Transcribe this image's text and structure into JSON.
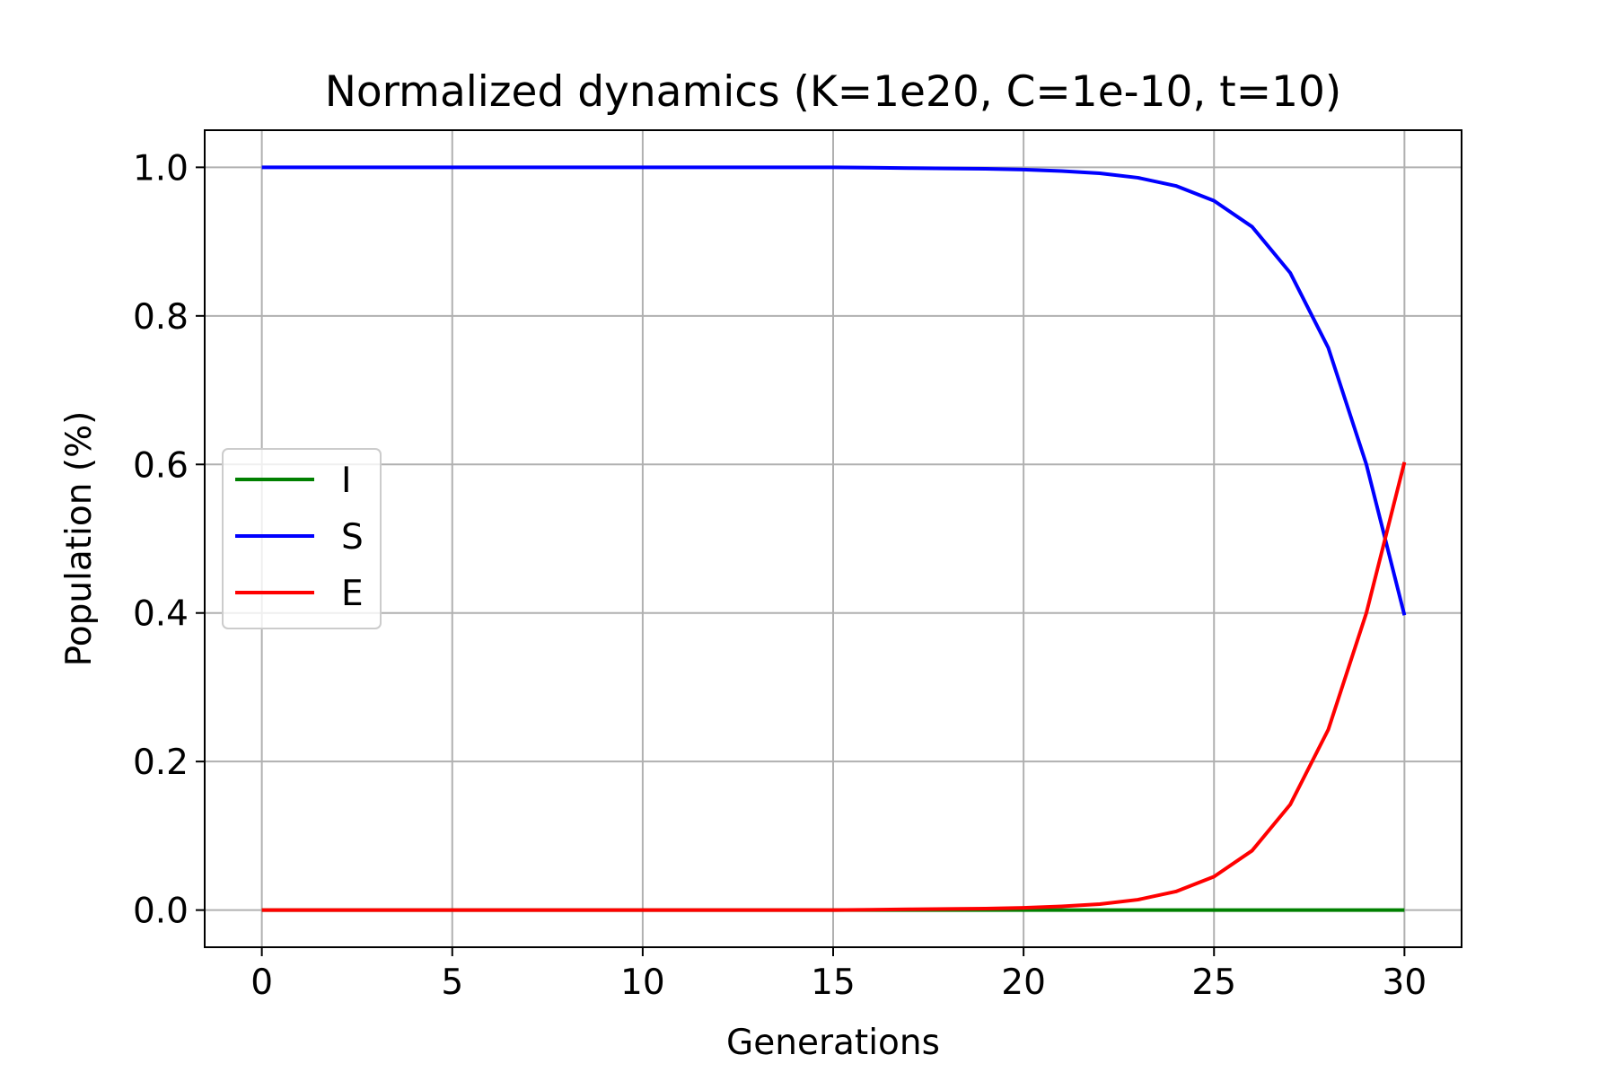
{
  "chart_data": {
    "type": "line",
    "title": "Normalized dynamics (K=1e20, C=1e-10, t=10)",
    "xlabel": "Generations",
    "ylabel": "Population (%)",
    "xlim": [
      -1.5,
      31.5
    ],
    "ylim": [
      -0.05,
      1.05
    ],
    "x_ticks": [
      0,
      5,
      10,
      15,
      20,
      25,
      30
    ],
    "x_tick_labels": [
      "0",
      "5",
      "10",
      "15",
      "20",
      "25",
      "30"
    ],
    "y_ticks": [
      0.0,
      0.2,
      0.4,
      0.6,
      0.8,
      1.0
    ],
    "y_tick_labels": [
      "0.0",
      "0.2",
      "0.4",
      "0.6",
      "0.8",
      "1.0"
    ],
    "grid": true,
    "legend_position": "center-left",
    "x": [
      0,
      1,
      2,
      3,
      4,
      5,
      6,
      7,
      8,
      9,
      10,
      11,
      12,
      13,
      14,
      15,
      16,
      17,
      18,
      19,
      20,
      21,
      22,
      23,
      24,
      25,
      26,
      27,
      28,
      29,
      30
    ],
    "series": [
      {
        "name": "I",
        "color": "#008000",
        "values": [
          0,
          0,
          0,
          0,
          0,
          0,
          0,
          0,
          0,
          0,
          0,
          0,
          0,
          0,
          0,
          0,
          0,
          0,
          0,
          0,
          0,
          0,
          0,
          0,
          0,
          0,
          0,
          0,
          0,
          0,
          0
        ]
      },
      {
        "name": "S",
        "color": "#0000ff",
        "values": [
          1.0,
          1.0,
          1.0,
          1.0,
          1.0,
          1.0,
          1.0,
          1.0,
          1.0,
          1.0,
          1.0,
          1.0,
          1.0,
          1.0,
          1.0,
          1.0,
          0.9995,
          0.999,
          0.9985,
          0.998,
          0.997,
          0.995,
          0.992,
          0.986,
          0.975,
          0.955,
          0.92,
          0.858,
          0.757,
          0.6,
          0.397
        ]
      },
      {
        "name": "E",
        "color": "#ff0000",
        "values": [
          0.0,
          0.0,
          0.0,
          0.0,
          0.0,
          0.0,
          0.0,
          0.0,
          0.0,
          0.0,
          0.0,
          0.0,
          0.0,
          0.0,
          0.0,
          0.0,
          0.0005,
          0.001,
          0.0015,
          0.002,
          0.003,
          0.005,
          0.008,
          0.014,
          0.025,
          0.045,
          0.08,
          0.142,
          0.243,
          0.4,
          0.603
        ]
      }
    ]
  }
}
